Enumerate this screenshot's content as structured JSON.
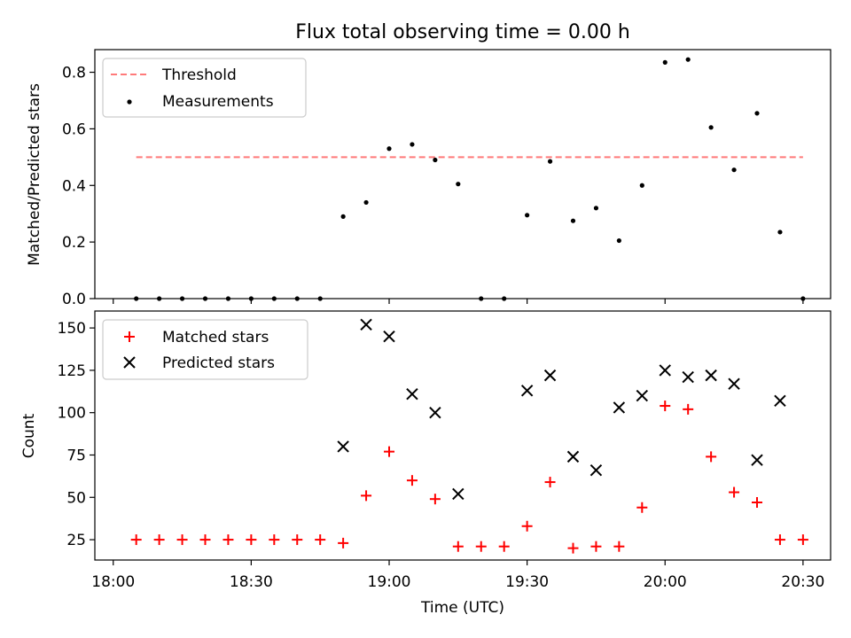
{
  "chart_data": [
    {
      "type": "scatter",
      "title": "Flux total observing time = 0.00 h",
      "xlabel": "",
      "ylabel": "Matched/Predicted stars",
      "xlim": [
        -4,
        156
      ],
      "ylim": [
        0,
        0.88
      ],
      "yticks": [
        0.0,
        0.2,
        0.4,
        0.6,
        0.8
      ],
      "ytick_labels": [
        "0.0",
        "0.2",
        "0.4",
        "0.6",
        "0.8"
      ],
      "legend": [
        "Threshold",
        "Measurements"
      ],
      "legend_position": "top-left",
      "colors": {
        "threshold": "#ff7a7a",
        "measurements": "#000000"
      },
      "threshold": {
        "name": "Threshold",
        "y": 0.5,
        "x": [
          5,
          150
        ]
      },
      "series": [
        {
          "name": "Measurements",
          "x": [
            5,
            10,
            15,
            20,
            25,
            30,
            35,
            40,
            45,
            50,
            55,
            60,
            65,
            70,
            75,
            80,
            85,
            90,
            95,
            100,
            105,
            110,
            115,
            120,
            125,
            130,
            135,
            140,
            145,
            150
          ],
          "values": [
            0,
            0,
            0,
            0,
            0,
            0,
            0,
            0,
            0,
            0.29,
            0.34,
            0.53,
            0.545,
            0.49,
            0.405,
            0,
            0,
            0.295,
            0.485,
            0.275,
            0.32,
            0.205,
            0.4,
            0.835,
            0.845,
            0.605,
            0.455,
            0.655,
            0.235,
            0
          ]
        }
      ]
    },
    {
      "type": "scatter",
      "title": "",
      "xlabel": "Time (UTC)",
      "ylabel": "Count",
      "xlim": [
        -4,
        156
      ],
      "ylim": [
        13,
        160
      ],
      "xticks": [
        0,
        30,
        60,
        90,
        120,
        150
      ],
      "xtick_labels": [
        "18:00",
        "18:30",
        "19:00",
        "19:30",
        "20:00",
        "20:30"
      ],
      "yticks": [
        25,
        50,
        75,
        100,
        125,
        150
      ],
      "ytick_labels": [
        "25",
        "50",
        "75",
        "100",
        "125",
        "150"
      ],
      "legend": [
        "Matched stars",
        "Predicted stars"
      ],
      "legend_position": "top-left",
      "colors": {
        "matched": "#ff0000",
        "predicted": "#000000"
      },
      "series": [
        {
          "name": "Matched stars",
          "marker": "+",
          "x": [
            5,
            10,
            15,
            20,
            25,
            30,
            35,
            40,
            45,
            50,
            55,
            60,
            65,
            70,
            75,
            80,
            85,
            90,
            95,
            100,
            105,
            110,
            115,
            120,
            125,
            130,
            135,
            140,
            145,
            150
          ],
          "values": [
            25,
            25,
            25,
            25,
            25,
            25,
            25,
            25,
            25,
            23,
            51,
            77,
            60,
            49,
            21,
            21,
            21,
            33,
            59,
            20,
            21,
            21,
            44,
            104,
            102,
            74,
            53,
            47,
            25,
            25
          ]
        },
        {
          "name": "Predicted stars",
          "marker": "x",
          "x": [
            50,
            55,
            60,
            65,
            70,
            75,
            90,
            95,
            100,
            105,
            110,
            115,
            120,
            125,
            130,
            135,
            140,
            145
          ],
          "values": [
            80,
            152,
            145,
            111,
            100,
            52,
            113,
            122,
            74,
            66,
            103,
            110,
            125,
            121,
            122,
            117,
            72,
            107
          ]
        }
      ]
    }
  ]
}
